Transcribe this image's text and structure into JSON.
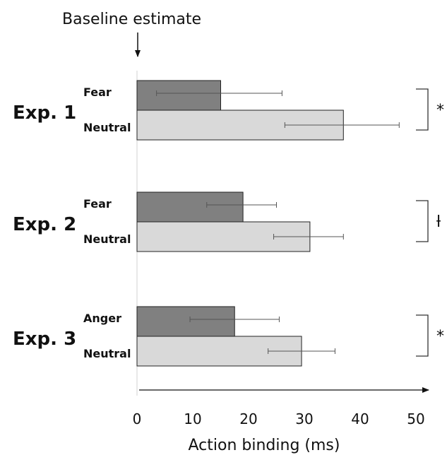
{
  "chart_data": {
    "type": "bar",
    "orientation": "horizontal",
    "baseline_label": "Baseline estimate",
    "xlabel": "Action binding (ms)",
    "xlim": [
      0,
      50
    ],
    "x_ticks": [
      "0",
      "10",
      "20",
      "30",
      "40",
      "50"
    ],
    "grid": false,
    "groups": [
      {
        "name": "Exp. 1",
        "significance": "*",
        "bars": [
          {
            "label": "Fear",
            "value": 15,
            "err_low": 3.5,
            "err_high": 26,
            "color": "#808080"
          },
          {
            "label": "Neutral",
            "value": 37,
            "err_low": 26.5,
            "err_high": 47,
            "color": "#d9d9d9"
          }
        ]
      },
      {
        "name": "Exp. 2",
        "significance": "ƚ",
        "bars": [
          {
            "label": "Fear",
            "value": 19,
            "err_low": 12.5,
            "err_high": 25,
            "color": "#808080"
          },
          {
            "label": "Neutral",
            "value": 31,
            "err_low": 24.5,
            "err_high": 37,
            "color": "#d9d9d9"
          }
        ]
      },
      {
        "name": "Exp. 3",
        "significance": "*",
        "bars": [
          {
            "label": "Anger",
            "value": 17.5,
            "err_low": 9.5,
            "err_high": 25.5,
            "color": "#808080"
          },
          {
            "label": "Neutral",
            "value": 29.5,
            "err_low": 23.5,
            "err_high": 35.5,
            "color": "#d9d9d9"
          }
        ]
      }
    ]
  }
}
